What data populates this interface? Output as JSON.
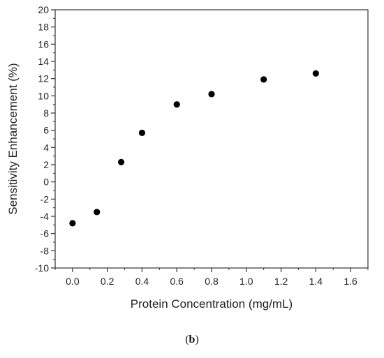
{
  "chart_data": {
    "type": "scatter",
    "title": "",
    "xlabel": "Protein Concentration (mg/mL)",
    "ylabel": "Sensitivity Enhancement (%)",
    "xlim": [
      -0.1,
      1.7
    ],
    "ylim": [
      -10,
      20
    ],
    "xticks": [
      "0.0",
      "0.2",
      "0.4",
      "0.6",
      "0.8",
      "1.0",
      "1.2",
      "1.4",
      "1.6"
    ],
    "yticks": [
      "-10",
      "-8",
      "-6",
      "-4",
      "-2",
      "0",
      "2",
      "4",
      "6",
      "8",
      "10",
      "12",
      "14",
      "16",
      "18",
      "20"
    ],
    "x": [
      0.0,
      0.14,
      0.28,
      0.4,
      0.6,
      0.8,
      1.1,
      1.4
    ],
    "y": [
      -4.8,
      -3.5,
      2.3,
      5.7,
      9.0,
      10.2,
      11.9,
      12.6
    ],
    "marker_color": "#000000",
    "grid": false,
    "legend": "none"
  },
  "caption": {
    "open": "(",
    "letter": "b",
    "close": ")"
  }
}
